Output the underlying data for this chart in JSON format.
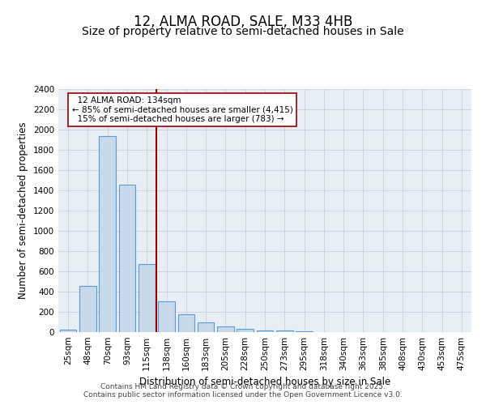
{
  "title": "12, ALMA ROAD, SALE, M33 4HB",
  "subtitle": "Size of property relative to semi-detached houses in Sale",
  "xlabel": "Distribution of semi-detached houses by size in Sale",
  "ylabel": "Number of semi-detached properties",
  "property_label": "12 ALMA ROAD: 134sqm",
  "pct_smaller": 85,
  "pct_larger": 15,
  "count_smaller": 4415,
  "count_larger": 783,
  "bar_categories": [
    "25sqm",
    "48sqm",
    "70sqm",
    "93sqm",
    "115sqm",
    "138sqm",
    "160sqm",
    "183sqm",
    "205sqm",
    "228sqm",
    "250sqm",
    "273sqm",
    "295sqm",
    "318sqm",
    "340sqm",
    "363sqm",
    "385sqm",
    "408sqm",
    "430sqm",
    "453sqm",
    "475sqm"
  ],
  "bar_values": [
    25,
    455,
    1935,
    1455,
    670,
    305,
    175,
    95,
    60,
    35,
    20,
    15,
    5,
    0,
    0,
    0,
    0,
    0,
    0,
    0,
    0
  ],
  "bar_color": "#c8daea",
  "bar_edgecolor": "#5b9bd5",
  "vline_color": "#990000",
  "vline_index": 4.5,
  "annotation_box_edgecolor": "#990000",
  "background_color": "#ffffff",
  "plot_bg_color": "#e8eef5",
  "grid_color": "#c8d0dc",
  "footer_text": "Contains HM Land Registry data © Crown copyright and database right 2025.\nContains public sector information licensed under the Open Government Licence v3.0.",
  "ylim": [
    0,
    2400
  ],
  "yticks": [
    0,
    200,
    400,
    600,
    800,
    1000,
    1200,
    1400,
    1600,
    1800,
    2000,
    2200,
    2400
  ],
  "title_fontsize": 12,
  "subtitle_fontsize": 10,
  "axis_label_fontsize": 8.5,
  "tick_fontsize": 7.5,
  "annotation_fontsize": 7.5,
  "footer_fontsize": 6.5
}
